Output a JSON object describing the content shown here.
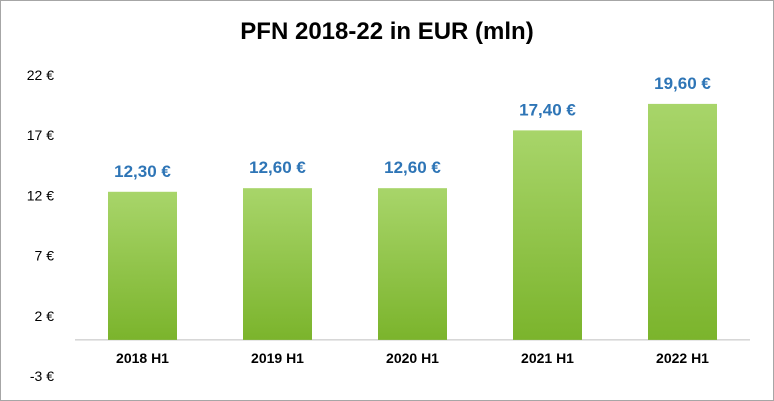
{
  "chart_data": {
    "type": "bar",
    "title": "PFN 2018-22 in EUR (mln)",
    "categories": [
      "2018 H1",
      "2019 H1",
      "2020 H1",
      "2021 H1",
      "2022 H1"
    ],
    "values": [
      12.3,
      12.6,
      12.6,
      17.4,
      19.6
    ],
    "data_labels": [
      "12,30 €",
      "12,60 €",
      "12,60 €",
      "17,40 €",
      "19,60 €"
    ],
    "ylim": [
      -3,
      22
    ],
    "yticks": [
      22,
      17,
      12,
      7,
      2,
      -3
    ],
    "ytick_labels": [
      "22 €",
      "17 €",
      "12 €",
      "7 €",
      "2 €",
      "-3 €"
    ],
    "xlabel": "",
    "ylabel": "",
    "grid": false,
    "legend": "none",
    "colors": {
      "bar_top": "#a8d56a",
      "bar_bottom": "#7bb42c",
      "data_label": "#2e75b6",
      "axis": "#bfbfbf"
    }
  }
}
